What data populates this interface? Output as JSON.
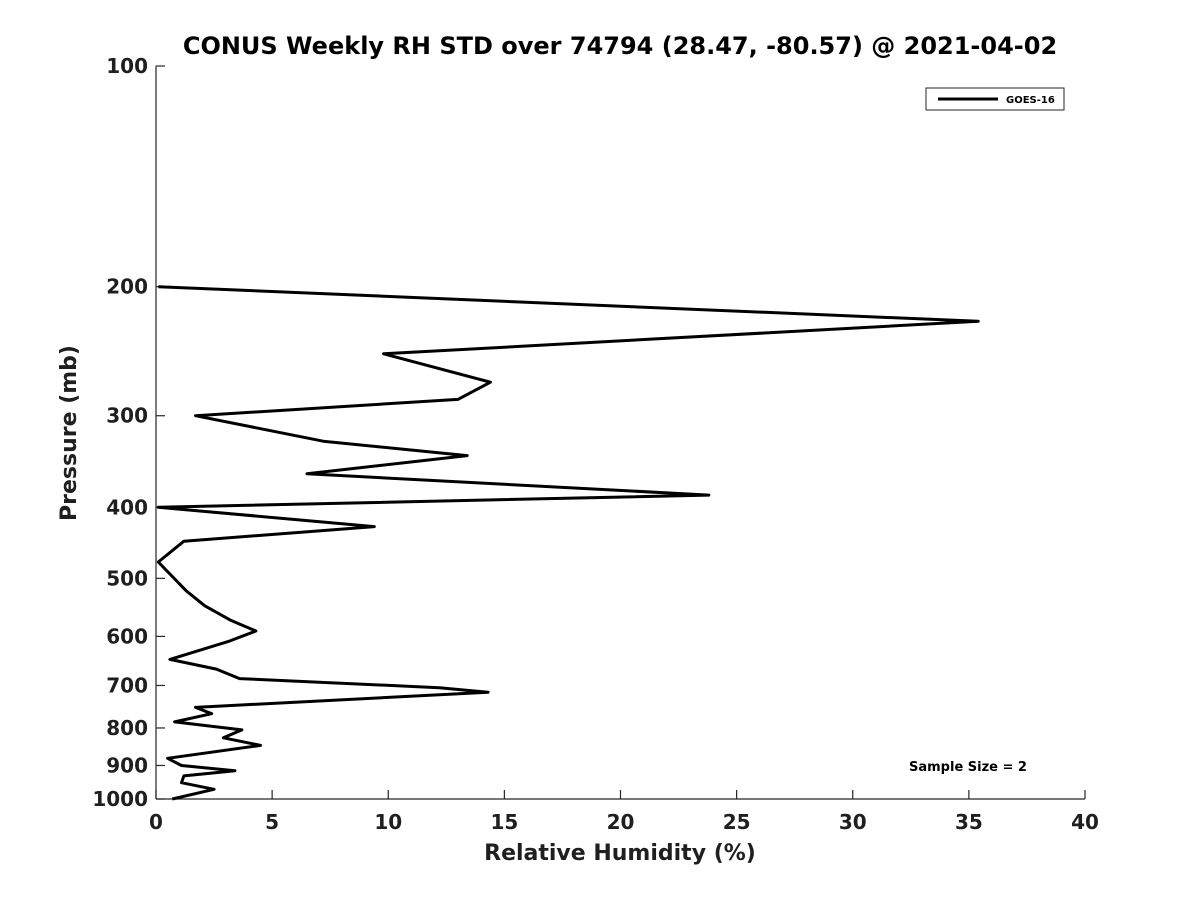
{
  "chart_data": {
    "type": "line",
    "title": "CONUS Weekly RH STD over 74794 (28.47, -80.57) @ 2021-04-02",
    "xlabel": "Relative Humidity (%)",
    "ylabel": "Pressure (mb)",
    "xlim": [
      0,
      40
    ],
    "ylim": [
      100,
      1000
    ],
    "y_scale": "log",
    "y_inverted": true,
    "grid": false,
    "legend_position": "top-right",
    "x_ticks": [
      0,
      5,
      10,
      15,
      20,
      25,
      30,
      35,
      40
    ],
    "y_ticks": [
      100,
      200,
      300,
      400,
      500,
      600,
      700,
      800,
      900,
      1000
    ],
    "series": [
      {
        "name": "GOES-16",
        "color": "#000000",
        "points": [
          {
            "x": 0.1,
            "y": 200
          },
          {
            "x": 35.4,
            "y": 223
          },
          {
            "x": 9.8,
            "y": 247
          },
          {
            "x": 14.4,
            "y": 270
          },
          {
            "x": 13.0,
            "y": 285
          },
          {
            "x": 1.7,
            "y": 300
          },
          {
            "x": 7.2,
            "y": 325
          },
          {
            "x": 13.4,
            "y": 340
          },
          {
            "x": 6.5,
            "y": 360
          },
          {
            "x": 23.8,
            "y": 385
          },
          {
            "x": 0.1,
            "y": 400
          },
          {
            "x": 9.4,
            "y": 425
          },
          {
            "x": 1.2,
            "y": 445
          },
          {
            "x": 0.1,
            "y": 475
          },
          {
            "x": 1.3,
            "y": 520
          },
          {
            "x": 2.1,
            "y": 545
          },
          {
            "x": 3.2,
            "y": 570
          },
          {
            "x": 4.3,
            "y": 590
          },
          {
            "x": 3.1,
            "y": 610
          },
          {
            "x": 0.6,
            "y": 645
          },
          {
            "x": 2.6,
            "y": 665
          },
          {
            "x": 3.6,
            "y": 685
          },
          {
            "x": 12.2,
            "y": 705
          },
          {
            "x": 14.3,
            "y": 715
          },
          {
            "x": 1.7,
            "y": 750
          },
          {
            "x": 2.4,
            "y": 765
          },
          {
            "x": 0.8,
            "y": 785
          },
          {
            "x": 3.7,
            "y": 805
          },
          {
            "x": 2.9,
            "y": 825
          },
          {
            "x": 4.5,
            "y": 845
          },
          {
            "x": 0.5,
            "y": 880
          },
          {
            "x": 1.1,
            "y": 900
          },
          {
            "x": 3.4,
            "y": 915
          },
          {
            "x": 1.2,
            "y": 930
          },
          {
            "x": 1.1,
            "y": 950
          },
          {
            "x": 2.5,
            "y": 970
          },
          {
            "x": 0.7,
            "y": 1000
          }
        ]
      }
    ],
    "annotations": [
      "Sample Size = 2"
    ]
  }
}
